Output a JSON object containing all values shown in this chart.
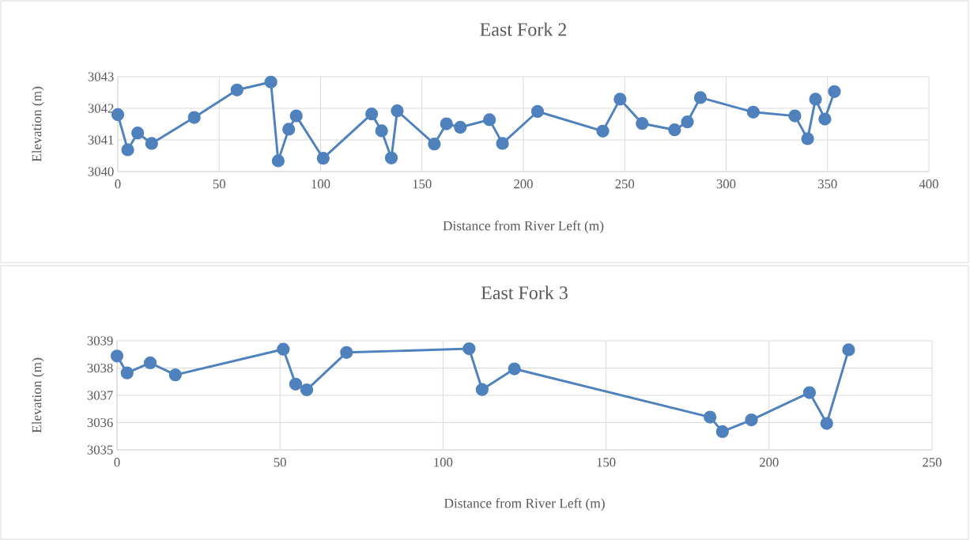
{
  "chart_data": [
    {
      "type": "line",
      "title": "East Fork 2",
      "xlabel": "Distance from River Left (m)",
      "ylabel": "Elevation (m)",
      "marker": "circle",
      "grid": true,
      "xlim": [
        0,
        400
      ],
      "ylim": [
        3040,
        3043
      ],
      "xticks": [
        0,
        50,
        100,
        150,
        200,
        250,
        300,
        350,
        400
      ],
      "yticks": [
        3040,
        3041,
        3042,
        3043
      ],
      "x": [
        0,
        4.9,
        9.8,
        16.7,
        37.7,
        58.8,
        75.5,
        79.1,
        84.3,
        88.0,
        101.3,
        125.2,
        130.1,
        134.9,
        137.8,
        156.1,
        162.1,
        168.9,
        183.3,
        189.7,
        207.0,
        239.2,
        247.7,
        258.6,
        274.6,
        280.9,
        287.3,
        313.4,
        333.9,
        340.2,
        344.1,
        348.7,
        353.4
      ],
      "series": [
        {
          "color": "#4f81bd",
          "values": [
            3041.8,
            3040.69,
            3041.22,
            3040.89,
            3041.71,
            3042.58,
            3042.83,
            3040.34,
            3041.34,
            3041.76,
            3040.42,
            3041.82,
            3041.29,
            3040.43,
            3041.92,
            3040.87,
            3041.51,
            3041.4,
            3041.64,
            3040.89,
            3041.9,
            3041.28,
            3042.29,
            3041.52,
            3041.32,
            3041.57,
            3042.34,
            3041.88,
            3041.76,
            3041.04,
            3042.29,
            3041.66,
            3042.53
          ]
        }
      ]
    },
    {
      "type": "line",
      "title": "East Fork 3",
      "xlabel": "Distance from River Left (m)",
      "ylabel": "Elevation (m)",
      "marker": "circle",
      "grid": true,
      "xlim": [
        0,
        250
      ],
      "ylim": [
        3035,
        3039
      ],
      "xticks": [
        0,
        50,
        100,
        150,
        200,
        250
      ],
      "yticks": [
        3035,
        3036,
        3037,
        3038,
        3039
      ],
      "x": [
        0,
        3.1,
        10.2,
        17.9,
        51.0,
        54.8,
        58.2,
        70.4,
        108.0,
        112.0,
        121.9,
        181.9,
        185.7,
        194.6,
        212.4,
        217.7,
        224.4
      ],
      "series": [
        {
          "color": "#4f81bd",
          "values": [
            3038.44,
            3037.82,
            3038.19,
            3037.75,
            3038.69,
            3037.41,
            3037.2,
            3038.57,
            3038.71,
            3037.21,
            3037.97,
            3036.2,
            3035.67,
            3036.1,
            3037.1,
            3035.97,
            3038.67
          ]
        }
      ]
    }
  ]
}
